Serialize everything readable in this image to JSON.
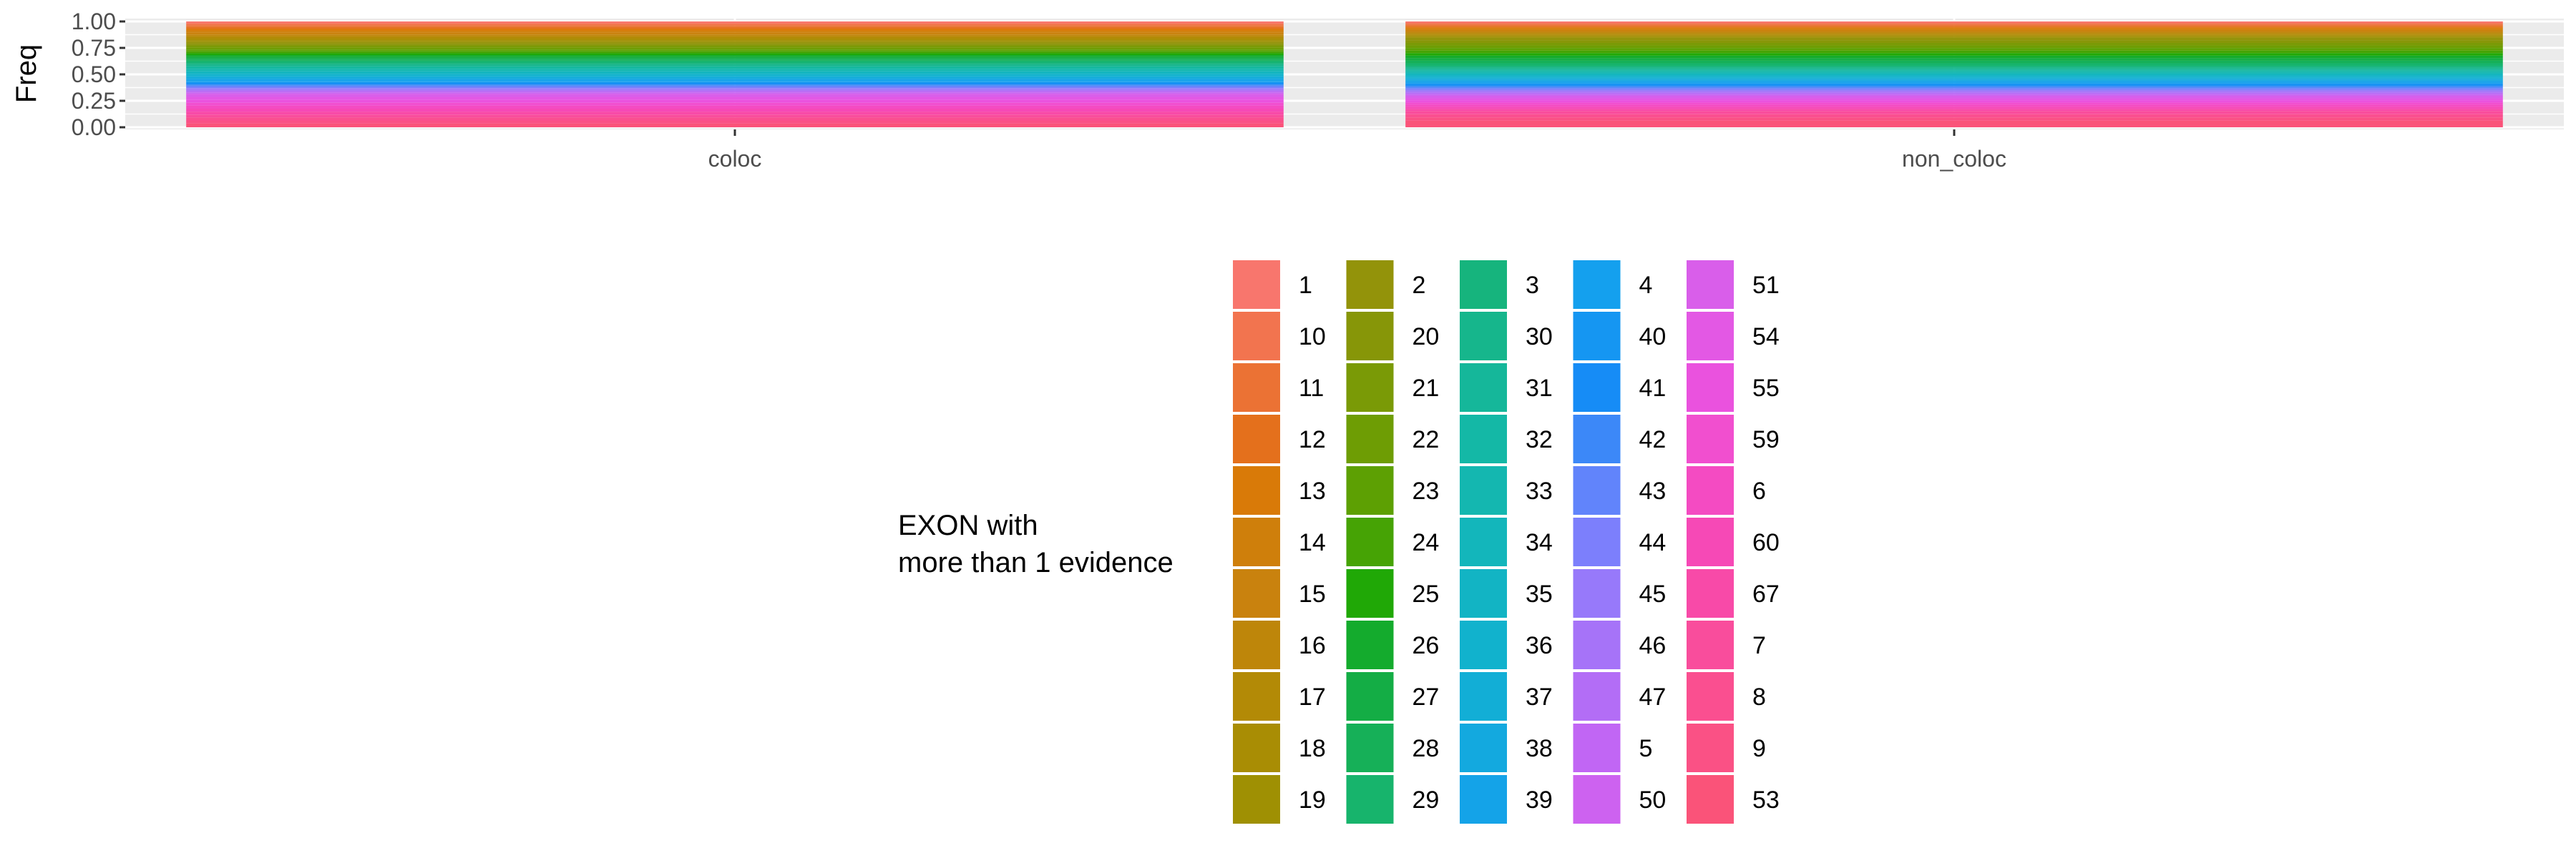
{
  "chart_data": {
    "type": "bar",
    "stacked": true,
    "position": "fill",
    "categories": [
      "coloc",
      "non_coloc"
    ],
    "xlabel": "",
    "ylabel": "Freq",
    "ylim": [
      0,
      1
    ],
    "y_ticks": [
      "0.00",
      "0.25",
      "0.50",
      "0.75",
      "1.00"
    ],
    "grid": true,
    "legend": {
      "title_lines": [
        "EXON with",
        "more than 1 evidence"
      ],
      "placement": "bottom",
      "columns": 5,
      "rows": 11
    },
    "series": [
      {
        "name": "1",
        "color": "#F8766D",
        "values": [
          0.019,
          0.014
        ]
      },
      {
        "name": "10",
        "color": "#F2744F",
        "values": [
          0.019,
          0.014
        ]
      },
      {
        "name": "11",
        "color": "#EB7234",
        "values": [
          0.019,
          0.014
        ]
      },
      {
        "name": "12",
        "color": "#E4701C",
        "values": [
          0.019,
          0.014
        ]
      },
      {
        "name": "13",
        "color": "#D97A08",
        "values": [
          0.019,
          0.014
        ]
      },
      {
        "name": "14",
        "color": "#CF7F0B",
        "values": [
          0.019,
          0.014
        ]
      },
      {
        "name": "15",
        "color": "#C9820E",
        "values": [
          0.019,
          0.014
        ]
      },
      {
        "name": "16",
        "color": "#BE860A",
        "values": [
          0.019,
          0.014
        ]
      },
      {
        "name": "17",
        "color": "#B38A06",
        "values": [
          0.019,
          0.014
        ]
      },
      {
        "name": "18",
        "color": "#A98D04",
        "values": [
          0.019,
          0.014
        ]
      },
      {
        "name": "19",
        "color": "#9F9003",
        "values": [
          0.019,
          0.014
        ]
      },
      {
        "name": "2",
        "color": "#93930A",
        "values": [
          0.019,
          0.024
        ]
      },
      {
        "name": "20",
        "color": "#879608",
        "values": [
          0.019,
          0.024
        ]
      },
      {
        "name": "21",
        "color": "#7A9A06",
        "values": [
          0.019,
          0.024
        ]
      },
      {
        "name": "22",
        "color": "#6E9D04",
        "values": [
          0.019,
          0.024
        ]
      },
      {
        "name": "23",
        "color": "#5DA003",
        "values": [
          0.019,
          0.024
        ]
      },
      {
        "name": "24",
        "color": "#46A305",
        "values": [
          0.019,
          0.024
        ]
      },
      {
        "name": "25",
        "color": "#20A806",
        "values": [
          0.019,
          0.024
        ]
      },
      {
        "name": "26",
        "color": "#14AB2D",
        "values": [
          0.019,
          0.024
        ]
      },
      {
        "name": "27",
        "color": "#14AD45",
        "values": [
          0.019,
          0.024
        ]
      },
      {
        "name": "28",
        "color": "#16B058",
        "values": [
          0.019,
          0.024
        ]
      },
      {
        "name": "29",
        "color": "#17B46C",
        "values": [
          0.019,
          0.024
        ]
      },
      {
        "name": "3",
        "color": "#16B47D",
        "values": [
          0.017,
          0.014
        ]
      },
      {
        "name": "30",
        "color": "#16B68C",
        "values": [
          0.017,
          0.014
        ]
      },
      {
        "name": "31",
        "color": "#15B79A",
        "values": [
          0.017,
          0.014
        ]
      },
      {
        "name": "32",
        "color": "#14B8A6",
        "values": [
          0.017,
          0.014
        ]
      },
      {
        "name": "33",
        "color": "#14B7B0",
        "values": [
          0.017,
          0.014
        ]
      },
      {
        "name": "34",
        "color": "#13B6BB",
        "values": [
          0.017,
          0.014
        ]
      },
      {
        "name": "35",
        "color": "#12B4C4",
        "values": [
          0.017,
          0.014
        ]
      },
      {
        "name": "36",
        "color": "#11B2CD",
        "values": [
          0.017,
          0.014
        ]
      },
      {
        "name": "37",
        "color": "#12AED6",
        "values": [
          0.017,
          0.014
        ]
      },
      {
        "name": "38",
        "color": "#13A9DF",
        "values": [
          0.017,
          0.014
        ]
      },
      {
        "name": "39",
        "color": "#14A3E8",
        "values": [
          0.017,
          0.014
        ]
      },
      {
        "name": "4",
        "color": "#14A0EE",
        "values": [
          0.012,
          0.012
        ]
      },
      {
        "name": "40",
        "color": "#1596F2",
        "values": [
          0.012,
          0.012
        ]
      },
      {
        "name": "41",
        "color": "#168CF6",
        "values": [
          0.012,
          0.012
        ]
      },
      {
        "name": "42",
        "color": "#3C88F8",
        "values": [
          0.012,
          0.012
        ]
      },
      {
        "name": "43",
        "color": "#6184FB",
        "values": [
          0.012,
          0.012
        ]
      },
      {
        "name": "44",
        "color": "#7C7FFC",
        "values": [
          0.012,
          0.012
        ]
      },
      {
        "name": "45",
        "color": "#9779FA",
        "values": [
          0.012,
          0.012
        ]
      },
      {
        "name": "46",
        "color": "#A673F8",
        "values": [
          0.012,
          0.012
        ]
      },
      {
        "name": "47",
        "color": "#B36DF6",
        "values": [
          0.012,
          0.012
        ]
      },
      {
        "name": "5",
        "color": "#C166F4",
        "values": [
          0.012,
          0.012
        ]
      },
      {
        "name": "50",
        "color": "#CD62F0",
        "values": [
          0.012,
          0.012
        ]
      },
      {
        "name": "51",
        "color": "#D95EEA",
        "values": [
          0.03,
          0.02
        ]
      },
      {
        "name": "54",
        "color": "#E358E4",
        "values": [
          0.03,
          0.02
        ]
      },
      {
        "name": "55",
        "color": "#EA52DE",
        "values": [
          0.03,
          0.02
        ]
      },
      {
        "name": "59",
        "color": "#F14FCF",
        "values": [
          0.03,
          0.02
        ]
      },
      {
        "name": "6",
        "color": "#F44BC2",
        "values": [
          0.03,
          0.02
        ]
      },
      {
        "name": "60",
        "color": "#F649B6",
        "values": [
          0.03,
          0.02
        ]
      },
      {
        "name": "67",
        "color": "#F84AA8",
        "values": [
          0.03,
          0.02
        ]
      },
      {
        "name": "7",
        "color": "#F94D9C",
        "values": [
          0.03,
          0.03
        ]
      },
      {
        "name": "8",
        "color": "#FA4F90",
        "values": [
          0.03,
          0.03
        ]
      },
      {
        "name": "9",
        "color": "#FA5185",
        "values": [
          0.03,
          0.03
        ]
      },
      {
        "name": "53",
        "color": "#FA5379",
        "values": [
          0.039,
          0.063
        ]
      }
    ]
  }
}
